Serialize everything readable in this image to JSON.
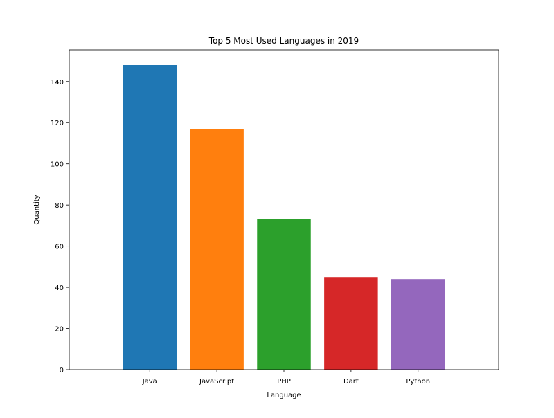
{
  "chart_data": {
    "type": "bar",
    "title": "Top 5 Most Used Languages in 2019",
    "xlabel": "Language",
    "ylabel": "Quantity",
    "categories": [
      "Java",
      "JavaScript",
      "PHP",
      "Dart",
      "Python"
    ],
    "values": [
      148,
      117,
      73,
      45,
      44
    ],
    "colors": [
      "#1f77b4",
      "#ff7f0e",
      "#2ca02c",
      "#d62728",
      "#9467bd"
    ],
    "ylim": [
      0,
      155.4
    ],
    "yticks": [
      0,
      20,
      40,
      60,
      80,
      100,
      120,
      140
    ],
    "grid": false,
    "legend": "none"
  }
}
